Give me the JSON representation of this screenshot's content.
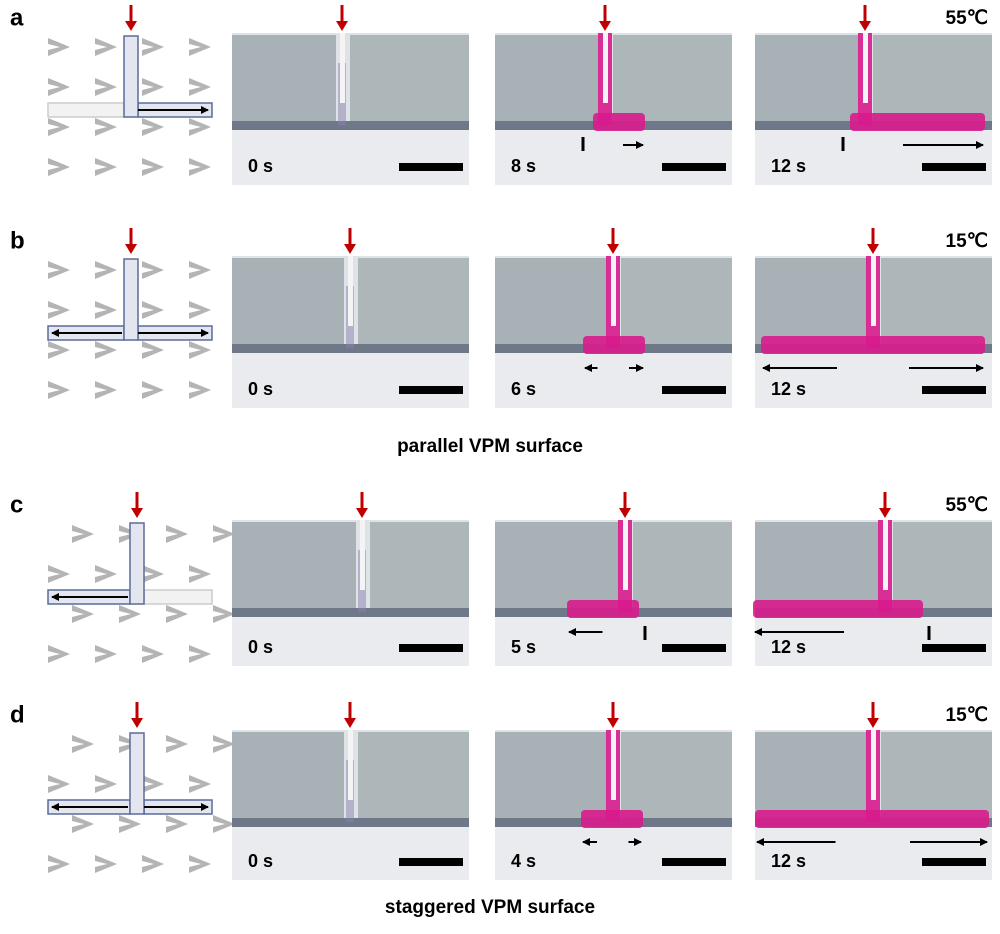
{
  "panels": [
    {
      "label": "a",
      "temperature": "55℃",
      "times": [
        "0 s",
        "8 s",
        "12 s"
      ]
    },
    {
      "label": "b",
      "temperature": "15℃",
      "times": [
        "0 s",
        "6 s",
        "12 s"
      ]
    },
    {
      "label": "c",
      "temperature": "55℃",
      "times": [
        "0 s",
        "5 s",
        "12 s"
      ]
    },
    {
      "label": "d",
      "temperature": "15℃",
      "times": [
        "0 s",
        "4 s",
        "12 s"
      ]
    }
  ],
  "captions": [
    "parallel VPM surface",
    "staggered VPM surface"
  ]
}
